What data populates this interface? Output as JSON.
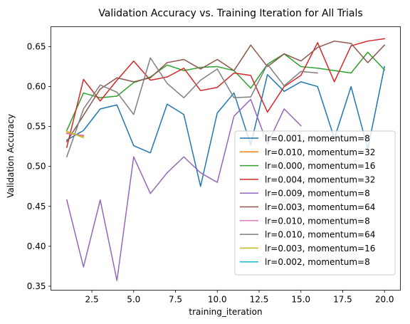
{
  "chart_data": {
    "type": "line",
    "title": "Validation Accuracy vs. Training Iteration for All Trials",
    "xlabel": "training_iteration",
    "ylabel": "Validation Accuracy",
    "xlim": [
      0.05,
      20.95
    ],
    "ylim": [
      0.345,
      0.675
    ],
    "xticks": [
      2.5,
      5.0,
      7.5,
      10.0,
      12.5,
      15.0,
      17.5,
      20.0
    ],
    "xtick_labels": [
      "2.5",
      "5.0",
      "7.5",
      "10.0",
      "12.5",
      "15.0",
      "17.5",
      "20.0"
    ],
    "yticks": [
      0.35,
      0.4,
      0.45,
      0.5,
      0.55,
      0.6,
      0.65
    ],
    "ytick_labels": [
      "0.35",
      "0.40",
      "0.45",
      "0.50",
      "0.55",
      "0.60",
      "0.65"
    ],
    "grid": false,
    "legend_position": "lower-right",
    "series": [
      {
        "name": "lr=0.001, momentum=8",
        "color": "#1f77b4",
        "x": [
          1,
          2,
          3,
          4,
          5,
          6,
          7,
          8,
          9,
          10,
          11,
          12,
          13,
          14,
          15,
          16,
          17,
          18,
          19,
          20
        ],
        "y": [
          0.533,
          0.545,
          0.572,
          0.577,
          0.526,
          0.517,
          0.578,
          0.565,
          0.475,
          0.567,
          0.592,
          0.527,
          0.615,
          0.594,
          0.606,
          0.6,
          0.535,
          0.6,
          0.522,
          0.625
        ]
      },
      {
        "name": "lr=0.010, momentum=32",
        "color": "#ff7f0e",
        "x": [
          1,
          2
        ],
        "y": [
          0.542,
          0.538
        ]
      },
      {
        "name": "lr=0.000, momentum=16",
        "color": "#2ca02c",
        "x": [
          1,
          2,
          3,
          4,
          5,
          6,
          7,
          8,
          9,
          10,
          11,
          12,
          13,
          14,
          15,
          16,
          17,
          18,
          19,
          20
        ],
        "y": [
          0.545,
          0.592,
          0.586,
          0.588,
          0.605,
          0.612,
          0.627,
          0.62,
          0.624,
          0.625,
          0.62,
          0.598,
          0.628,
          0.641,
          0.625,
          0.623,
          0.62,
          0.617,
          0.643,
          0.621
        ]
      },
      {
        "name": "lr=0.004, momentum=32",
        "color": "#d62728",
        "x": [
          1,
          2,
          3,
          4,
          5,
          6,
          7,
          8,
          9,
          10,
          11,
          12,
          13,
          14,
          15,
          16,
          17,
          18,
          19,
          20
        ],
        "y": [
          0.524,
          0.609,
          0.582,
          0.608,
          0.632,
          0.608,
          0.612,
          0.623,
          0.595,
          0.599,
          0.617,
          0.614,
          0.568,
          0.6,
          0.614,
          0.655,
          0.606,
          0.651,
          0.657,
          0.66
        ]
      },
      {
        "name": "lr=0.009, momentum=8",
        "color": "#9467bd",
        "x": [
          1,
          2,
          3,
          4,
          5,
          6,
          7,
          8,
          9,
          10,
          11,
          12,
          13,
          14,
          15
        ],
        "y": [
          0.458,
          0.374,
          0.458,
          0.357,
          0.512,
          0.466,
          0.492,
          0.512,
          0.492,
          0.48,
          0.563,
          0.584,
          0.528,
          0.572,
          0.551
        ]
      },
      {
        "name": "lr=0.003, momentum=64",
        "color": "#8c564b",
        "x": [
          1,
          2,
          3,
          4,
          5,
          6,
          7,
          8,
          9,
          10,
          11,
          12,
          13,
          14,
          15,
          16,
          17,
          18,
          19,
          20
        ],
        "y": [
          0.531,
          0.564,
          0.597,
          0.611,
          0.606,
          0.611,
          0.63,
          0.634,
          0.622,
          0.634,
          0.62,
          0.652,
          0.625,
          0.641,
          0.632,
          0.649,
          0.657,
          0.654,
          0.63,
          0.652
        ]
      },
      {
        "name": "lr=0.010, momentum=8",
        "color": "#e377c2",
        "x": [
          1,
          2
        ],
        "y": [
          0.541,
          0.539
        ]
      },
      {
        "name": "lr=0.010, momentum=64",
        "color": "#7f7f7f",
        "x": [
          1,
          2,
          3,
          4,
          5,
          6,
          7,
          8,
          9,
          10,
          11,
          12,
          13,
          14,
          15,
          16
        ],
        "y": [
          0.512,
          0.572,
          0.602,
          0.593,
          0.565,
          0.636,
          0.604,
          0.586,
          0.608,
          0.622,
          0.586,
          0.587,
          0.628,
          0.601,
          0.619,
          0.617
        ]
      },
      {
        "name": "lr=0.003, momentum=16",
        "color": "#bcbd22",
        "x": [
          1,
          2
        ],
        "y": [
          0.544,
          0.536
        ]
      },
      {
        "name": "lr=0.002, momentum=8",
        "color": "#17becf",
        "x": [
          1
        ],
        "y": [
          0.54
        ]
      }
    ]
  }
}
